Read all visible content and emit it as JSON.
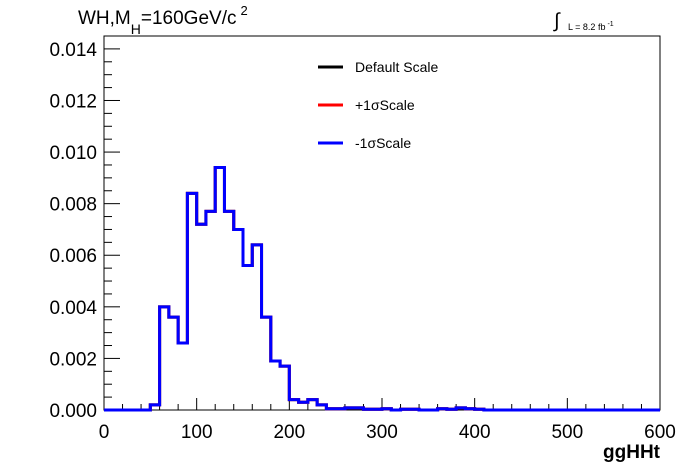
{
  "title": {
    "main": "WH,M",
    "sub": "H",
    "rest": "=160GeV/c",
    "sup": "2"
  },
  "luminosity": {
    "integral": "∫",
    "text": "L = 8.2 fb",
    "sup": "-1"
  },
  "chart_data": {
    "type": "line",
    "step": true,
    "xlabel": "ggHHt",
    "ylabel": "",
    "xlim": [
      0,
      600
    ],
    "ylim": [
      0,
      0.0145
    ],
    "xticks": [
      0,
      100,
      200,
      300,
      400,
      500,
      600
    ],
    "xtick_labels": [
      "0",
      "100",
      "200",
      "300",
      "400",
      "500",
      "600"
    ],
    "yticks": [
      0,
      0.002,
      0.004,
      0.006,
      0.008,
      0.01,
      0.012,
      0.014
    ],
    "ytick_labels": [
      "0.000",
      "0.002",
      "0.004",
      "0.006",
      "0.008",
      "0.010",
      "0.012",
      "0.014"
    ],
    "bin_edges": [
      0,
      10,
      20,
      30,
      40,
      50,
      60,
      70,
      80,
      90,
      100,
      110,
      120,
      130,
      140,
      150,
      160,
      170,
      180,
      190,
      200,
      210,
      220,
      230,
      240,
      250,
      260,
      270,
      280,
      290,
      300,
      310,
      320,
      330,
      340,
      350,
      360,
      370,
      380,
      390,
      400,
      410,
      420,
      430,
      440,
      450,
      460,
      470,
      480,
      490,
      500,
      510,
      520,
      530,
      540,
      550,
      560,
      570,
      580,
      590,
      600
    ],
    "series": [
      {
        "name": "Default Scale",
        "color": "#000000",
        "values": [
          0,
          0,
          0,
          0,
          0,
          0.0002,
          0.004,
          0.0036,
          0.0026,
          0.0084,
          0.0072,
          0.0077,
          0.0094,
          0.0077,
          0.007,
          0.0056,
          0.0064,
          0.0036,
          0.0019,
          0.0017,
          0.0004,
          0.0003,
          0.0004,
          0.0002,
          5e-05,
          5e-05,
          8e-05,
          8e-05,
          3e-05,
          3e-05,
          5e-05,
          0,
          3e-05,
          3e-05,
          0,
          0,
          5e-05,
          3e-05,
          8e-05,
          5e-05,
          3e-05,
          0,
          0,
          0,
          0,
          0,
          0,
          0,
          0,
          0,
          0,
          0,
          0,
          0,
          0,
          0,
          0,
          0,
          0,
          0
        ]
      },
      {
        "name": "+1σScale",
        "color": "#ff0000",
        "values": [
          0,
          0,
          0,
          0,
          0,
          0.0002,
          0.004,
          0.0036,
          0.0026,
          0.0084,
          0.0072,
          0.0077,
          0.0094,
          0.0077,
          0.007,
          0.0056,
          0.0064,
          0.0036,
          0.0019,
          0.0017,
          0.0004,
          0.0003,
          0.0004,
          0.0002,
          5e-05,
          5e-05,
          8e-05,
          8e-05,
          3e-05,
          3e-05,
          5e-05,
          0,
          3e-05,
          3e-05,
          0,
          0,
          5e-05,
          3e-05,
          8e-05,
          5e-05,
          3e-05,
          0,
          0,
          0,
          0,
          0,
          0,
          0,
          0,
          0,
          0,
          0,
          0,
          0,
          0,
          0,
          0,
          0,
          0,
          0
        ]
      },
      {
        "name": "-1σScale",
        "color": "#0000ff",
        "values": [
          0,
          0,
          0,
          0,
          0,
          0.0002,
          0.004,
          0.0036,
          0.0026,
          0.0084,
          0.0072,
          0.0077,
          0.0094,
          0.0077,
          0.007,
          0.0056,
          0.0064,
          0.0036,
          0.0019,
          0.0017,
          0.0004,
          0.0003,
          0.0004,
          0.0002,
          5e-05,
          5e-05,
          8e-05,
          8e-05,
          3e-05,
          3e-05,
          5e-05,
          0,
          3e-05,
          3e-05,
          0,
          0,
          5e-05,
          3e-05,
          8e-05,
          5e-05,
          3e-05,
          0,
          0,
          0,
          0,
          0,
          0,
          0,
          0,
          0,
          0,
          0,
          0,
          0,
          0,
          0,
          0,
          0,
          0,
          0
        ]
      }
    ],
    "legend_position": "top-right",
    "grid": false
  }
}
